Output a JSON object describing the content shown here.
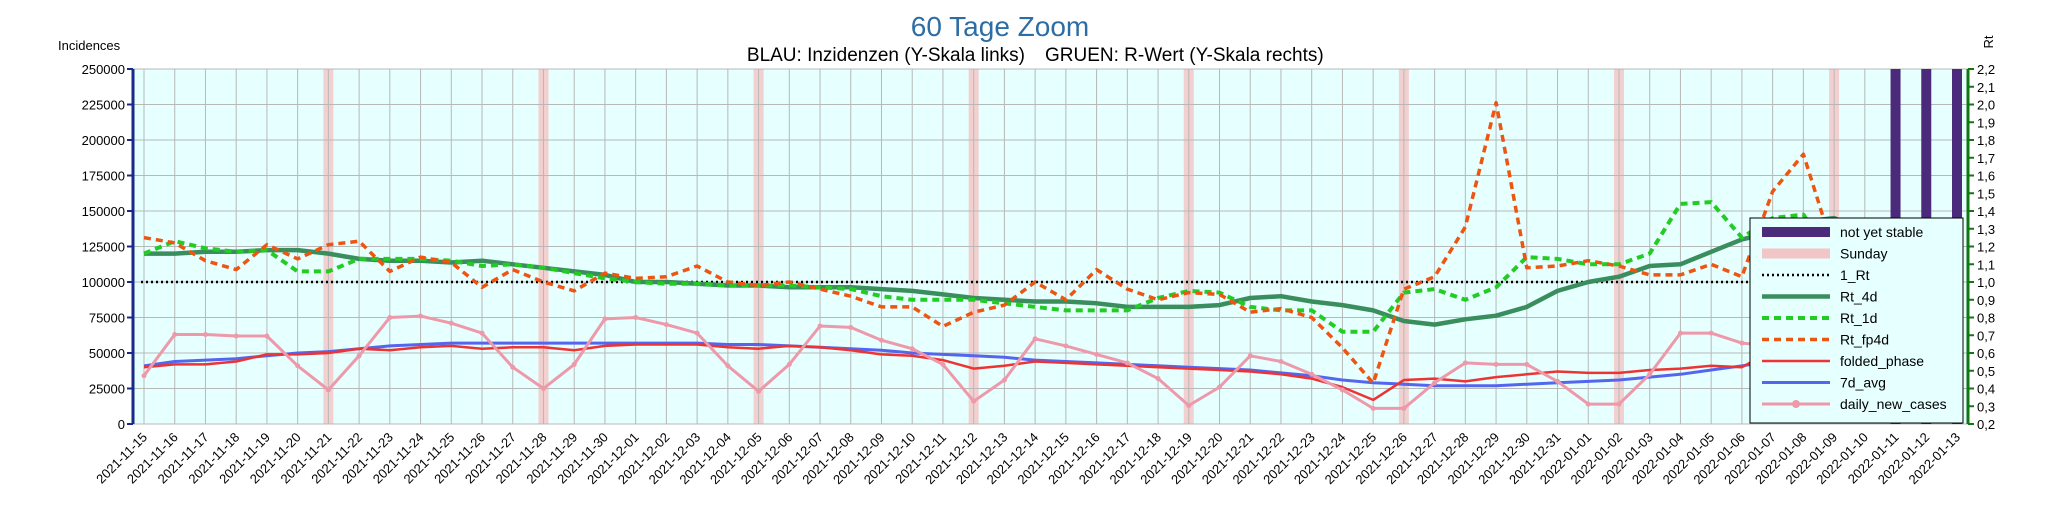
{
  "chart_data": {
    "type": "line",
    "title": "60 Tage Zoom",
    "subtitle_left": "BLAU: Inzidenzen (Y-Skala links)",
    "subtitle_right": "GRUEN: R-Wert (Y-Skala rechts)",
    "ylabel_left": "Incidences",
    "ylabel_right": "Rt",
    "ylim_left": [
      0,
      250000
    ],
    "ylim_right": [
      0.2,
      2.2
    ],
    "yticks_left": [
      "0",
      "25000",
      "50000",
      "75000",
      "100000",
      "125000",
      "150000",
      "175000",
      "200000",
      "225000",
      "250000"
    ],
    "yticks_right": [
      "0,2",
      "0,3",
      "0,4",
      "0,5",
      "0,6",
      "0,7",
      "0,8",
      "0,9",
      "1,0",
      "1,1",
      "1,2",
      "1,3",
      "1,4",
      "1,5",
      "1,6",
      "1,7",
      "1,8",
      "1,9",
      "2,0",
      "2,1",
      "2,2"
    ],
    "grid": true,
    "legend_position": "right",
    "categories": [
      "2021-11-15",
      "2021-11-16",
      "2021-11-17",
      "2021-11-18",
      "2021-11-19",
      "2021-11-20",
      "2021-11-21",
      "2021-11-22",
      "2021-11-23",
      "2021-11-24",
      "2021-11-25",
      "2021-11-26",
      "2021-11-27",
      "2021-11-28",
      "2021-11-29",
      "2021-11-30",
      "2021-12-01",
      "2021-12-02",
      "2021-12-03",
      "2021-12-04",
      "2021-12-05",
      "2021-12-06",
      "2021-12-07",
      "2021-12-08",
      "2021-12-09",
      "2021-12-10",
      "2021-12-11",
      "2021-12-12",
      "2021-12-13",
      "2021-12-14",
      "2021-12-15",
      "2021-12-16",
      "2021-12-17",
      "2021-12-18",
      "2021-12-19",
      "2021-12-20",
      "2021-12-21",
      "2021-12-22",
      "2021-12-23",
      "2021-12-24",
      "2021-12-25",
      "2021-12-26",
      "2021-12-27",
      "2021-12-28",
      "2021-12-29",
      "2021-12-30",
      "2021-12-31",
      "2022-01-01",
      "2022-01-02",
      "2022-01-03",
      "2022-01-04",
      "2022-01-05",
      "2022-01-06",
      "2022-01-07",
      "2022-01-08",
      "2022-01-09",
      "2022-01-10",
      "2022-01-11",
      "2022-01-12",
      "2022-01-13"
    ],
    "sundays": [
      "2021-11-21",
      "2021-11-28",
      "2021-12-05",
      "2021-12-12",
      "2021-12-19",
      "2021-12-26",
      "2022-01-02",
      "2022-01-09"
    ],
    "not_yet_stable": [
      "2022-01-11",
      "2022-01-12",
      "2022-01-13"
    ],
    "one_rt": 1.0,
    "series": [
      {
        "name": "not yet stable",
        "axis": "none",
        "color": "#4b2a7b",
        "style": "band"
      },
      {
        "name": "Sunday",
        "axis": "none",
        "color": "#f2c6c6",
        "style": "band"
      },
      {
        "name": "1_Rt",
        "axis": "right",
        "color": "#000000",
        "style": "dotted"
      },
      {
        "name": "Rt_4d",
        "axis": "right",
        "color": "#3a8d5c",
        "style": "solid",
        "values": [
          1.16,
          1.16,
          1.17,
          1.17,
          1.18,
          1.18,
          1.16,
          1.13,
          1.12,
          1.12,
          1.11,
          1.12,
          1.1,
          1.08,
          1.06,
          1.04,
          1.0,
          1.0,
          0.99,
          0.98,
          0.98,
          0.97,
          0.97,
          0.97,
          0.96,
          0.95,
          0.93,
          0.91,
          0.9,
          0.89,
          0.89,
          0.88,
          0.86,
          0.86,
          0.86,
          0.87,
          0.91,
          0.92,
          0.89,
          0.87,
          0.84,
          0.78,
          0.76,
          0.79,
          0.81,
          0.86,
          0.95,
          1.0,
          1.03,
          1.09,
          1.1,
          1.17,
          1.24,
          1.28,
          1.34,
          1.36,
          1.28,
          1.27,
          1.22,
          1.2
        ]
      },
      {
        "name": "Rt_1d",
        "axis": "right",
        "color": "#22cc22",
        "style": "dashed",
        "values": [
          1.16,
          1.23,
          1.19,
          1.17,
          1.18,
          1.06,
          1.06,
          1.13,
          1.13,
          1.13,
          1.12,
          1.09,
          1.1,
          1.08,
          1.05,
          1.02,
          1.0,
          0.99,
          0.99,
          0.98,
          0.98,
          0.98,
          0.97,
          0.96,
          0.92,
          0.9,
          0.9,
          0.9,
          0.88,
          0.86,
          0.84,
          0.84,
          0.84,
          0.91,
          0.95,
          0.94,
          0.86,
          0.84,
          0.84,
          0.72,
          0.72,
          0.94,
          0.96,
          0.9,
          0.97,
          1.14,
          1.13,
          1.1,
          1.1,
          1.16,
          1.44,
          1.45,
          1.25,
          1.36,
          1.38,
          1.12,
          1.2,
          1.22,
          1.2,
          0.99
        ]
      },
      {
        "name": "Rt_fp4d",
        "axis": "right",
        "color": "#ee5511",
        "style": "dashed",
        "values": [
          1.25,
          1.22,
          1.12,
          1.07,
          1.21,
          1.13,
          1.21,
          1.23,
          1.06,
          1.14,
          1.11,
          0.97,
          1.07,
          1.0,
          0.95,
          1.05,
          1.02,
          1.03,
          1.09,
          1.0,
          0.98,
          1.0,
          0.96,
          0.92,
          0.86,
          0.86,
          0.75,
          0.83,
          0.87,
          1.0,
          0.9,
          1.07,
          0.96,
          0.9,
          0.94,
          0.93,
          0.83,
          0.85,
          0.8,
          0.63,
          0.43,
          0.96,
          1.03,
          1.31,
          2.01,
          1.08,
          1.09,
          1.12,
          1.09,
          1.04,
          1.04,
          1.1,
          1.03,
          1.51,
          1.72,
          1.17,
          1.1,
          0.85,
          0.72,
          0.88
        ]
      },
      {
        "name": "folded_phase",
        "axis": "left",
        "color": "#ee3333",
        "style": "solid",
        "values": [
          40000,
          42000,
          42000,
          44000,
          49000,
          49000,
          50000,
          53000,
          52000,
          54000,
          55000,
          53000,
          54000,
          54000,
          52000,
          55000,
          56000,
          56000,
          56000,
          54000,
          53000,
          55000,
          54000,
          52000,
          49000,
          48000,
          45000,
          39000,
          41000,
          44000,
          43000,
          42000,
          41000,
          40000,
          39000,
          38000,
          37000,
          35000,
          32000,
          26000,
          17000,
          31000,
          32000,
          30000,
          33000,
          35000,
          37000,
          36000,
          36000,
          38000,
          39000,
          41000,
          40000,
          52000,
          66000,
          48000,
          47000,
          47000,
          50000,
          45000
        ]
      },
      {
        "name": "7d_avg",
        "axis": "left",
        "color": "#5566ee",
        "style": "solid",
        "values": [
          41000,
          44000,
          45000,
          46000,
          48000,
          50000,
          51000,
          53000,
          55000,
          56000,
          57000,
          57000,
          57000,
          57000,
          57000,
          57000,
          57000,
          57000,
          57000,
          56000,
          56000,
          55000,
          54000,
          53000,
          52000,
          50000,
          49000,
          48000,
          47000,
          45000,
          44000,
          43000,
          42000,
          41000,
          40000,
          39000,
          38000,
          36000,
          34000,
          31000,
          29000,
          28000,
          27000,
          27000,
          27000,
          28000,
          29000,
          30000,
          31000,
          33000,
          35000,
          38000,
          41000,
          44000,
          47000,
          48000,
          49000,
          52000,
          55000,
          56000
        ]
      },
      {
        "name": "daily_new_cases",
        "axis": "left",
        "color": "#ee99aa",
        "style": "marker",
        "values": [
          34000,
          63000,
          63000,
          62000,
          62000,
          41000,
          24000,
          48000,
          75000,
          76000,
          71000,
          64000,
          40000,
          25000,
          42000,
          74000,
          75000,
          70000,
          64000,
          41000,
          23000,
          42000,
          69000,
          68000,
          59000,
          53000,
          42000,
          16000,
          31000,
          60000,
          55000,
          49000,
          43000,
          32000,
          13000,
          26000,
          48000,
          44000,
          35000,
          24000,
          11000,
          11000,
          29000,
          43000,
          42000,
          42000,
          30000,
          14000,
          14000,
          35000,
          64000,
          64000,
          57000,
          55000,
          40000,
          23000,
          51000,
          82000,
          81000,
          59000
        ]
      }
    ]
  }
}
